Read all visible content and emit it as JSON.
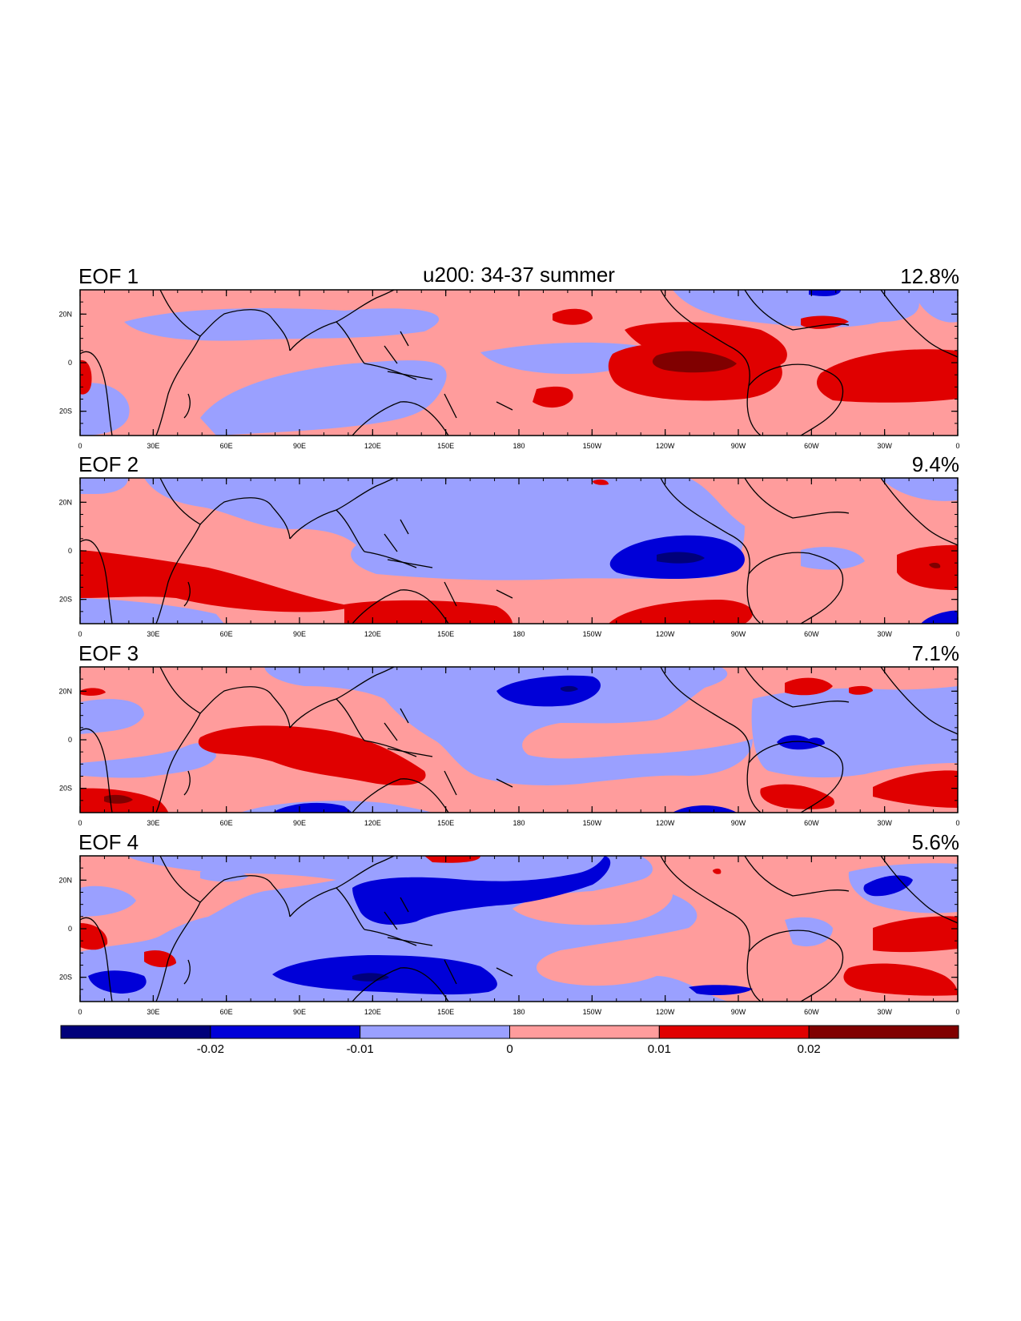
{
  "figure": {
    "title": "u200: 34-37 summer",
    "x_tick_labels": [
      "0",
      "30E",
      "60E",
      "90E",
      "120E",
      "150E",
      "180",
      "150W",
      "120W",
      "90W",
      "60W",
      "30W",
      "0"
    ],
    "y_tick_labels": [
      "20N",
      "0",
      "20S"
    ],
    "panels": [
      {
        "label": "EOF 1",
        "percent": "12.8%"
      },
      {
        "label": "EOF 2",
        "percent": "9.4%"
      },
      {
        "label": "EOF 3",
        "percent": "7.1%"
      },
      {
        "label": "EOF 4",
        "percent": "5.6%"
      }
    ],
    "colorbar": {
      "colors": [
        "#00007a",
        "#0000d8",
        "#9aa0ff",
        "#ff9c9c",
        "#e00000",
        "#800000"
      ],
      "labels": [
        "-0.02",
        "-0.01",
        "0",
        "0.01",
        "0.02"
      ]
    }
  }
}
